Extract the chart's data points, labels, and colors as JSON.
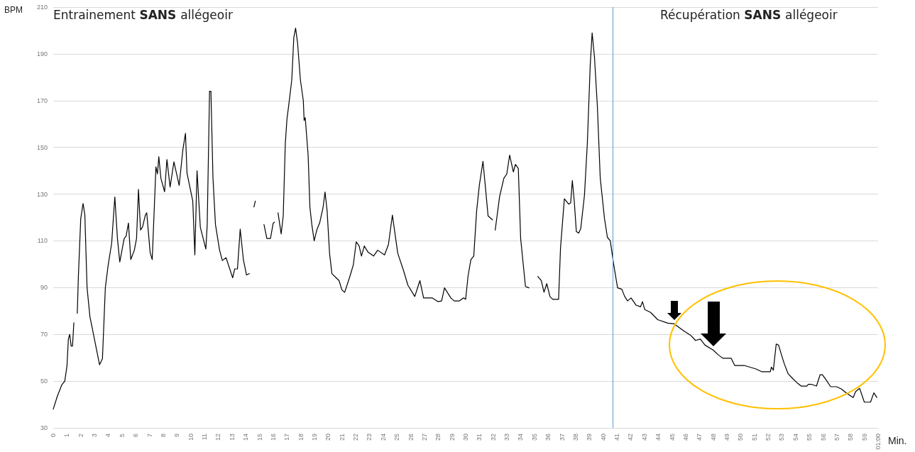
{
  "chart_data": {
    "type": "line",
    "xlabel": "Min.",
    "ylabel": "BPM",
    "annotations": [
      "Entrainement SANS allégeoir",
      "Récupération SANS allégeoir"
    ],
    "xlim": [
      0,
      60
    ],
    "xticks": [
      0,
      1,
      2,
      3,
      4,
      5,
      6,
      7,
      8,
      9,
      10,
      11,
      12,
      13,
      14,
      15,
      16,
      17,
      18,
      19,
      20,
      21,
      22,
      23,
      24,
      25,
      26,
      27,
      28,
      29,
      30,
      31,
      32,
      33,
      34,
      35,
      36,
      37,
      38,
      39,
      40,
      41,
      42,
      43,
      44,
      45,
      46,
      47,
      48,
      49,
      50,
      51,
      52,
      53,
      54,
      55,
      56,
      57,
      58,
      59,
      {
        "value": 60,
        "label": "01:00"
      }
    ],
    "ylim": [
      30,
      210
    ],
    "yticks": [
      30,
      50,
      70,
      90,
      110,
      130,
      150,
      170,
      190,
      210
    ],
    "grid": "y",
    "marker": "none",
    "line_style": "solid",
    "ref_lines": [
      {
        "axis": "x",
        "value": 40.7,
        "color": "#5b9bd5"
      }
    ],
    "series": [
      {
        "color": "#000000",
        "x": [
          0,
          0.3,
          0.63,
          0.84,
          1.0,
          1.1,
          1.2,
          1.3,
          1.4,
          1.5,
          1.62,
          1.75,
          1.83,
          2.0,
          2.17,
          2.3,
          2.46,
          2.67,
          2.84,
          3.05,
          3.37,
          3.58,
          3.79,
          4.0,
          4.25,
          4.48,
          4.67,
          4.84,
          5.16,
          5.3,
          5.47,
          5.64,
          5.9,
          6.06,
          6.2,
          6.35,
          6.5,
          6.7,
          6.8,
          7.05,
          7.2,
          7.47,
          7.58,
          7.68,
          7.83,
          8.1,
          8.27,
          8.5,
          8.78,
          9.16,
          9.43,
          9.62,
          9.73,
          10.15,
          10.3,
          10.46,
          10.7,
          11.1,
          11.2,
          11.37,
          11.47,
          11.62,
          11.8,
          12.1,
          12.3,
          12.57,
          13.05,
          13.2,
          13.4,
          13.6,
          13.83,
          14.06,
          14.27,
          14.45,
          14.6,
          14.7,
          15.0,
          15.33,
          15.54,
          15.8,
          16.0,
          16.1,
          16.22,
          16.35,
          16.58,
          16.73,
          16.88,
          17.0,
          17.15,
          17.35,
          17.5,
          17.63,
          17.77,
          17.98,
          18.19,
          18.25,
          18.33,
          18.54,
          18.67,
          18.81,
          18.98,
          19.17,
          19.38,
          19.63,
          19.77,
          19.92,
          20.1,
          20.27,
          20.58,
          20.79,
          21.0,
          21.2,
          21.58,
          21.83,
          22.04,
          22.25,
          22.42,
          22.63,
          22.88,
          23.3,
          23.6,
          24.1,
          24.38,
          24.67,
          25.06,
          25.48,
          25.8,
          26.3,
          26.67,
          26.94,
          27.56,
          27.98,
          28.25,
          28.46,
          28.92,
          29.17,
          29.54,
          29.85,
          30.0,
          30.17,
          30.38,
          30.59,
          30.8,
          31.0,
          31.26,
          31.42,
          31.63,
          31.95,
          32.05,
          32.15,
          32.47,
          32.78,
          32.99,
          33.2,
          33.47,
          33.62,
          33.83,
          34.0,
          34.35,
          34.6,
          34.9,
          35.25,
          35.5,
          35.7,
          35.9,
          36.13,
          36.34,
          36.76,
          36.9,
          37.18,
          37.49,
          37.64,
          37.76,
          37.9,
          38.05,
          38.22,
          38.37,
          38.64,
          38.85,
          39.06,
          39.2,
          39.37,
          39.58,
          39.79,
          40.1,
          40.31,
          40.52,
          40.77,
          41.05,
          41.36,
          41.57,
          41.78,
          42.03,
          42.4,
          42.72,
          42.86,
          43.03,
          43.45,
          43.97,
          44.7,
          45.17,
          45.86,
          46.38,
          46.72,
          47.07,
          47.41,
          48.0,
          48.36,
          48.7,
          49.31,
          49.57,
          50.26,
          51.12,
          51.55,
          52.16,
          52.24,
          52.38,
          52.59,
          52.76,
          53.02,
          53.19,
          53.45,
          53.79,
          54.14,
          54.4,
          54.83,
          54.91,
          55.17,
          55.52,
          55.78,
          55.95,
          56.21,
          56.55,
          56.98,
          57.33,
          57.67,
          57.93,
          58.19,
          58.36,
          58.66,
          59.0,
          59.45,
          59.69,
          59.91
        ],
        "values": [
          38,
          43.6,
          48.5,
          50,
          56.5,
          68,
          70,
          65,
          65,
          75,
          null,
          79,
          95,
          119.5,
          126,
          121,
          90,
          77.5,
          72.6,
          66.4,
          57,
          59.6,
          90,
          99.8,
          109,
          128.8,
          111,
          101,
          111,
          112,
          117.6,
          102,
          106,
          111,
          132,
          114.6,
          116,
          121,
          122,
          105,
          102,
          141.7,
          138.6,
          146,
          136.8,
          131,
          144.8,
          133,
          143.8,
          133.7,
          149,
          156,
          139,
          127,
          104,
          140,
          115.8,
          106.5,
          117,
          174,
          174,
          136.8,
          117,
          106,
          101.6,
          102.8,
          94.2,
          98,
          98,
          115,
          102,
          95.4,
          96,
          null,
          124.5,
          127,
          null,
          117,
          111,
          111,
          117.6,
          118,
          null,
          122,
          113,
          120.7,
          151.6,
          162,
          169,
          178.8,
          197,
          201,
          194.8,
          178.8,
          170,
          161.5,
          162.7,
          146.7,
          124.4,
          117,
          110,
          114.6,
          117.7,
          124.4,
          130.9,
          123,
          104.7,
          96,
          94.2,
          93,
          89,
          88,
          94.8,
          99.8,
          109.6,
          107.8,
          103.5,
          107.8,
          105.3,
          103.5,
          106,
          104,
          108.4,
          121,
          104.7,
          97.3,
          91,
          86.2,
          93,
          85.6,
          85.6,
          84,
          84.3,
          89.9,
          85.6,
          84.3,
          84.3,
          85.6,
          85,
          94.8,
          102,
          103.5,
          123,
          134,
          144,
          134,
          120.7,
          119,
          null,
          114.6,
          129,
          136.8,
          138.6,
          146.7,
          139.5,
          142.7,
          141,
          111,
          90.5,
          89.9,
          null,
          94.8,
          93,
          88,
          91.7,
          86.2,
          85,
          85,
          107,
          128,
          125.7,
          126.3,
          135.8,
          127,
          114,
          113.3,
          115.2,
          129.4,
          151.6,
          185,
          199,
          188.6,
          167.6,
          136.8,
          119.5,
          111.5,
          110,
          99.8,
          89.9,
          89.3,
          86.2,
          84.3,
          85.6,
          82.5,
          81.8,
          84,
          80.6,
          79.4,
          76.3,
          74.8,
          74.5,
          71.5,
          69.5,
          67.4,
          68,
          65.4,
          63.3,
          61.3,
          59.8,
          59.8,
          56.7,
          56.7,
          55.2,
          54,
          54,
          56,
          54.7,
          65.9,
          65.4,
          60.3,
          57.2,
          53.2,
          51.1,
          49.1,
          47.9,
          47.9,
          48.6,
          48.6,
          47.9,
          52.7,
          52.7,
          50.6,
          47.6,
          47.6,
          46.6,
          45,
          44,
          43,
          45.5,
          46.9,
          41,
          41,
          45,
          43
        ]
      }
    ]
  }
}
